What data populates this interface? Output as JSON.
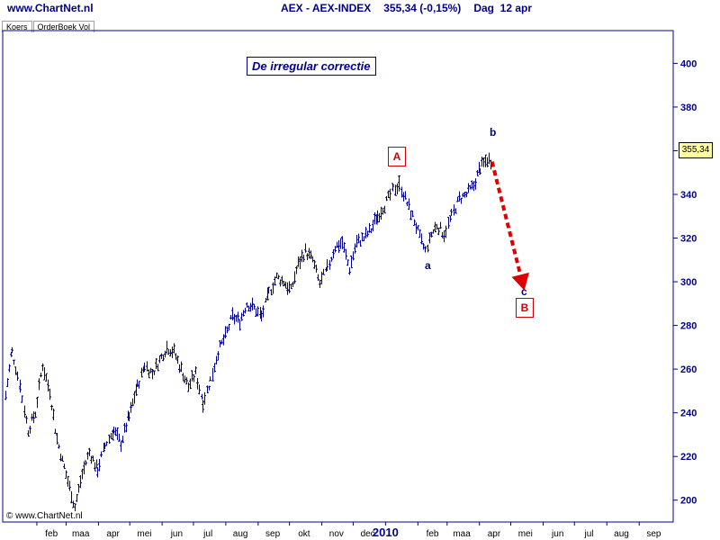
{
  "header": {
    "site": "www.ChartNet.nl",
    "symbol": "AEX - AEX-INDEX",
    "quote": "355,34 (-0,15%)",
    "period": "Dag  12 apr"
  },
  "tabs": [
    "Koers",
    "OrderBoek Vol"
  ],
  "copyright": "© www.ChartNet.nl",
  "last_value_label": "355,34",
  "annotations": {
    "title": "De irregular correctie",
    "box_A": "A",
    "box_B": "B",
    "wave_a": "a",
    "wave_b": "b",
    "wave_c": "c"
  },
  "colors": {
    "price": "#00008b",
    "axis": "#00008b",
    "arrow": "#dd0000",
    "box": "#cc0000",
    "last_value_bg": "#ffff9c"
  },
  "chart_data": {
    "type": "bar",
    "style": "daily OHLC price bars",
    "ylim": [
      190,
      415
    ],
    "yticks": [
      200,
      220,
      240,
      260,
      280,
      300,
      320,
      340,
      360,
      380,
      400
    ],
    "ytick_labels": [
      "200",
      "220",
      "240",
      "260",
      "280",
      "300",
      "320",
      "340",
      "360",
      "380",
      "400"
    ],
    "xtick_labels": [
      "feb",
      "maa",
      "apr",
      "mei",
      "jun",
      "jul",
      "aug",
      "sep",
      "okt",
      "nov",
      "dec",
      "2010",
      "feb",
      "maa",
      "apr",
      "mei",
      "jun",
      "jul",
      "aug",
      "sep"
    ],
    "bold_xtick": "2010",
    "series": [
      {
        "points": [
          [
            "2009-01-02",
            248
          ],
          [
            "2009-01-08",
            268
          ],
          [
            "2009-01-16",
            252
          ],
          [
            "2009-01-23",
            232
          ],
          [
            "2009-01-30",
            240
          ],
          [
            "2009-02-06",
            262
          ],
          [
            "2009-02-13",
            250
          ],
          [
            "2009-02-20",
            228
          ],
          [
            "2009-02-27",
            215
          ],
          [
            "2009-03-06",
            203
          ],
          [
            "2009-03-09",
            197
          ],
          [
            "2009-03-16",
            212
          ],
          [
            "2009-03-23",
            222
          ],
          [
            "2009-03-31",
            214
          ],
          [
            "2009-04-07",
            225
          ],
          [
            "2009-04-15",
            232
          ],
          [
            "2009-04-22",
            226
          ],
          [
            "2009-04-30",
            238
          ],
          [
            "2009-05-08",
            252
          ],
          [
            "2009-05-15",
            262
          ],
          [
            "2009-05-22",
            258
          ],
          [
            "2009-05-29",
            264
          ],
          [
            "2009-06-05",
            270
          ],
          [
            "2009-06-12",
            268
          ],
          [
            "2009-06-19",
            260
          ],
          [
            "2009-06-26",
            252
          ],
          [
            "2009-07-03",
            258
          ],
          [
            "2009-07-10",
            245
          ],
          [
            "2009-07-17",
            255
          ],
          [
            "2009-07-24",
            268
          ],
          [
            "2009-07-31",
            275
          ],
          [
            "2009-08-07",
            284
          ],
          [
            "2009-08-14",
            282
          ],
          [
            "2009-08-21",
            290
          ],
          [
            "2009-08-28",
            288
          ],
          [
            "2009-09-04",
            284
          ],
          [
            "2009-09-11",
            295
          ],
          [
            "2009-09-18",
            302
          ],
          [
            "2009-09-25",
            300
          ],
          [
            "2009-10-02",
            296
          ],
          [
            "2009-10-09",
            308
          ],
          [
            "2009-10-16",
            314
          ],
          [
            "2009-10-23",
            310
          ],
          [
            "2009-10-30",
            299
          ],
          [
            "2009-11-06",
            306
          ],
          [
            "2009-11-13",
            316
          ],
          [
            "2009-11-20",
            318
          ],
          [
            "2009-11-27",
            306
          ],
          [
            "2009-12-04",
            318
          ],
          [
            "2009-12-11",
            320
          ],
          [
            "2009-12-18",
            324
          ],
          [
            "2009-12-24",
            330
          ],
          [
            "2009-12-31",
            335
          ],
          [
            "2010-01-08",
            342
          ],
          [
            "2010-01-14",
            345
          ],
          [
            "2010-01-21",
            336
          ],
          [
            "2010-01-28",
            328
          ],
          [
            "2010-02-04",
            318
          ],
          [
            "2010-02-08",
            314
          ],
          [
            "2010-02-12",
            320
          ],
          [
            "2010-02-19",
            326
          ],
          [
            "2010-02-26",
            322
          ],
          [
            "2010-03-05",
            330
          ],
          [
            "2010-03-12",
            338
          ],
          [
            "2010-03-19",
            340
          ],
          [
            "2010-03-26",
            344
          ],
          [
            "2010-04-01",
            352
          ],
          [
            "2010-04-08",
            356
          ],
          [
            "2010-04-12",
            355.34
          ]
        ]
      }
    ],
    "projection": {
      "from": [
        "2010-04-13",
        355
      ],
      "to": [
        "2010-05-14",
        296
      ],
      "style": "dashed arrow"
    }
  }
}
